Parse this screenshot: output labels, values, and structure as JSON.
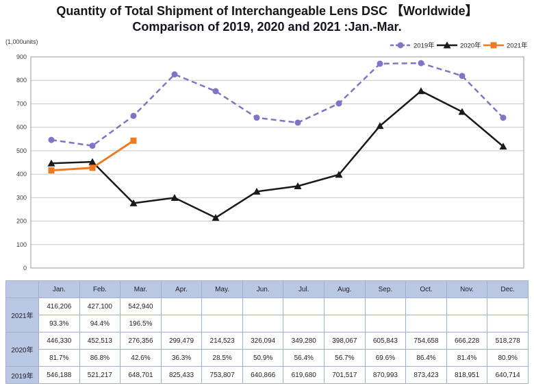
{
  "title": {
    "line1": "Quantity of Total Shipment of Interchangeable Lens DSC 【Worldwide】",
    "line2": "Comparison of 2019, 2020 and 2021 :Jan.-Mar."
  },
  "chart_data": {
    "type": "line",
    "unit_label": "(1,000units)",
    "categories": [
      "Jan.",
      "Feb.",
      "Mar.",
      "Apr.",
      "May.",
      "Jun.",
      "Jul.",
      "Aug.",
      "Sep.",
      "Oct.",
      "Nov.",
      "Dec."
    ],
    "series": [
      {
        "name": "2019年",
        "color": "#7D76C4",
        "line_style": "dashed",
        "marker": "circle",
        "values": [
          546.188,
          521.217,
          648.701,
          825.433,
          753.807,
          640.866,
          619.68,
          701.517,
          870.993,
          873.423,
          818.951,
          640.714
        ]
      },
      {
        "name": "2020年",
        "color": "#1A1A1A",
        "line_style": "solid",
        "marker": "triangle",
        "values": [
          446.33,
          452.513,
          276.356,
          299.479,
          214.523,
          326.094,
          349.28,
          398.067,
          605.843,
          754.658,
          666.228,
          518.278
        ]
      },
      {
        "name": "2021年",
        "color": "#EE7B23",
        "line_style": "solid",
        "marker": "square",
        "values": [
          416.206,
          427.1,
          542.94
        ]
      }
    ],
    "ylim": [
      0,
      900
    ],
    "ytick_step": 100,
    "grid": true,
    "legend_position": "top-right",
    "x_axis_labels_visible": false
  },
  "table": {
    "col_headers": [
      "Jan.",
      "Feb.",
      "Mar.",
      "Apr.",
      "May.",
      "Jun.",
      "Jul.",
      "Aug.",
      "Sep.",
      "Oct.",
      "Nov.",
      "Dec."
    ],
    "rows": [
      {
        "label": "2021年",
        "values": [
          "416,206",
          "427,100",
          "542,940",
          "",
          "",
          "",
          "",
          "",
          "",
          "",
          "",
          ""
        ],
        "percents": [
          "93.3%",
          "94.4%",
          "196.5%",
          "",
          "",
          "",
          "",
          "",
          "",
          "",
          "",
          ""
        ]
      },
      {
        "label": "2020年",
        "values": [
          "446,330",
          "452,513",
          "276,356",
          "299,479",
          "214,523",
          "326,094",
          "349,280",
          "398,067",
          "605,843",
          "754,658",
          "666,228",
          "518,278"
        ],
        "percents": [
          "81.7%",
          "86.8%",
          "42.6%",
          "36.3%",
          "28.5%",
          "50.9%",
          "56.4%",
          "56.7%",
          "69.6%",
          "86.4%",
          "81.4%",
          "80.9%"
        ]
      },
      {
        "label": "2019年",
        "values": [
          "546,188",
          "521,217",
          "648,701",
          "825,433",
          "753,807",
          "640,866",
          "619,680",
          "701,517",
          "870,993",
          "873,423",
          "818,951",
          "640,714"
        ]
      }
    ]
  }
}
